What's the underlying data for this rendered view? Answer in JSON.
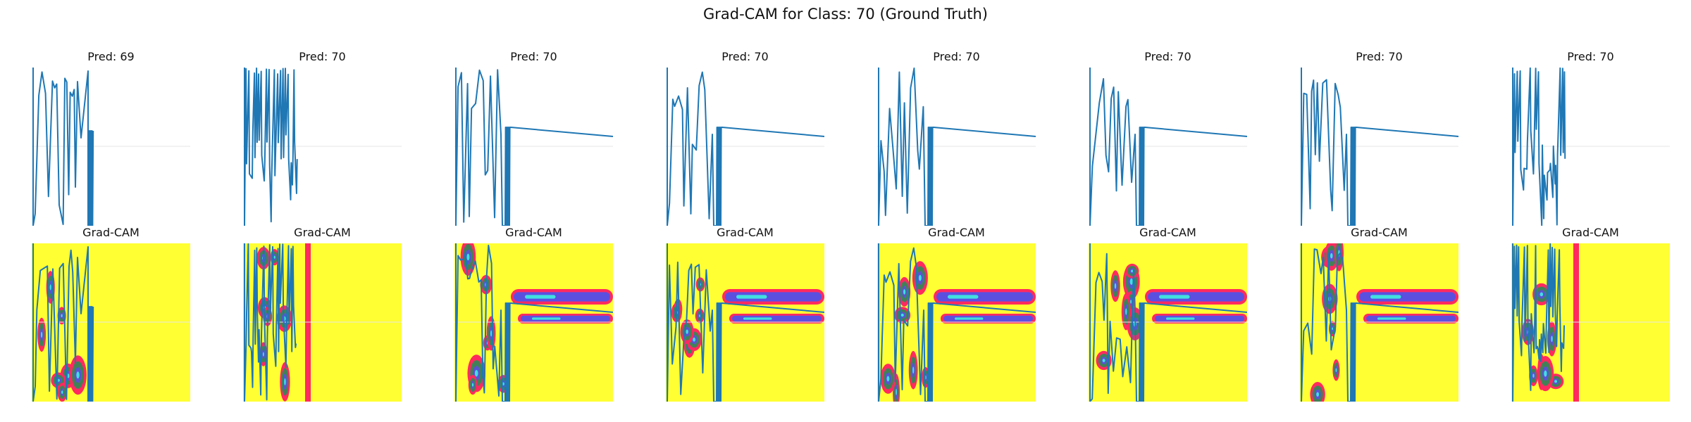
{
  "figure": {
    "suptitle": "Grad-CAM for Class: 70 (Ground Truth)",
    "heatmap_title": "Grad-CAM"
  },
  "colors": {
    "line": "#1f77b4",
    "gridline": "#e6e6e6",
    "cam_background": "#ffff33",
    "cam_hot": "#ff2a5f",
    "cam_mid": "#2e8b57",
    "cam_high": "#5b4fe0",
    "cam_peak": "#40e0e0"
  },
  "chart_data": [
    {
      "type": "line",
      "title": "Pred: 69",
      "panel": 1,
      "variant": "a"
    },
    {
      "type": "line",
      "title": "Pred: 70",
      "panel": 2,
      "variant": "b"
    },
    {
      "type": "line",
      "title": "Pred: 70",
      "panel": 3,
      "variant": "c"
    },
    {
      "type": "line",
      "title": "Pred: 70",
      "panel": 4,
      "variant": "c"
    },
    {
      "type": "line",
      "title": "Pred: 70",
      "panel": 5,
      "variant": "c"
    },
    {
      "type": "line",
      "title": "Pred: 70",
      "panel": 6,
      "variant": "c"
    },
    {
      "type": "line",
      "title": "Pred: 70",
      "panel": 7,
      "variant": "c"
    },
    {
      "type": "line",
      "title": "Pred: 70",
      "panel": 8,
      "variant": "b"
    }
  ]
}
